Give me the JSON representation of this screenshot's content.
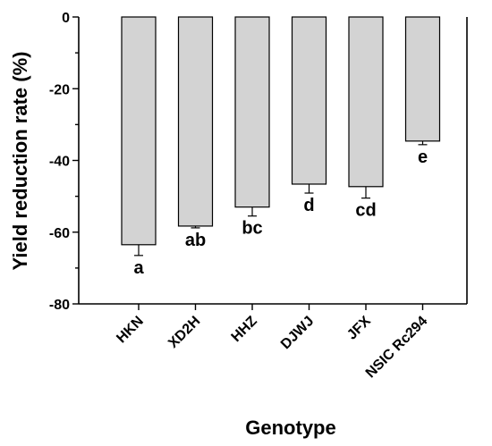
{
  "chart_data": {
    "type": "bar",
    "xlabel": "Genotype",
    "ylabel": "Yield reduction rate (%)",
    "categories": [
      "HKN",
      "XD2H",
      "HHZ",
      "DJWJ",
      "JFX",
      "NSIC Rc294"
    ],
    "values": [
      -63.5,
      -58.3,
      -53.0,
      -46.6,
      -47.3,
      -34.6
    ],
    "errors": [
      3.0,
      0.5,
      2.5,
      2.5,
      3.2,
      1.0
    ],
    "significance": [
      "a",
      "ab",
      "bc",
      "d",
      "cd",
      "e"
    ],
    "ylim": [
      -80,
      0
    ],
    "yticks": [
      "0",
      "-20",
      "-40",
      "-60",
      "-80"
    ],
    "grid": false,
    "bar_color": "#d3d3d3"
  }
}
